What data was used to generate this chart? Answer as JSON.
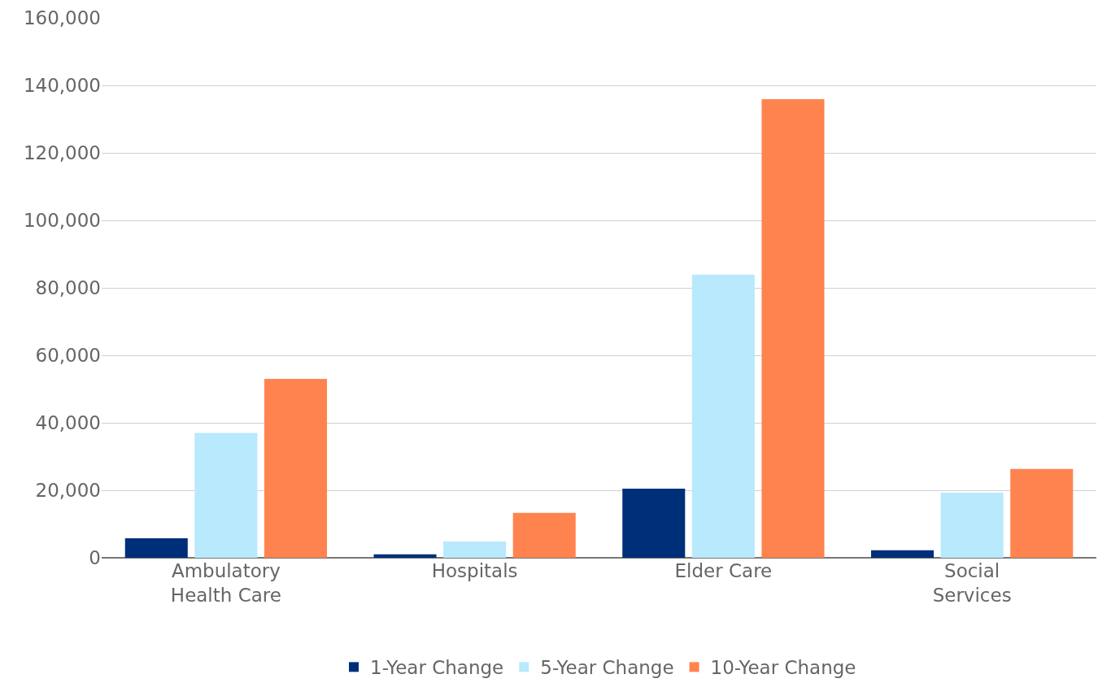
{
  "chart_data": {
    "type": "bar",
    "categories": [
      "Ambulatory\nHealth Care",
      "Hospitals",
      "Elder Care",
      "Social\nServices"
    ],
    "series": [
      {
        "name": "1-Year Change",
        "color": "#002f7a",
        "values": [
          5800,
          1000,
          20500,
          2200
        ]
      },
      {
        "name": "5-Year Change",
        "color": "#b8e9fd",
        "values": [
          37000,
          4800,
          83900,
          19300
        ]
      },
      {
        "name": "10-Year Change",
        "color": "#ff834e",
        "values": [
          53000,
          13300,
          135900,
          26300
        ]
      }
    ],
    "ylim": [
      0,
      160000
    ],
    "yticks": [
      {
        "value": 0,
        "label": "0"
      },
      {
        "value": 20000,
        "label": "20,000"
      },
      {
        "value": 40000,
        "label": "40,000"
      },
      {
        "value": 60000,
        "label": "60,000"
      },
      {
        "value": 80000,
        "label": "80,000"
      },
      {
        "value": 100000,
        "label": "100,000"
      },
      {
        "value": 120000,
        "label": "120,000"
      },
      {
        "value": 140000,
        "label": "140,000"
      },
      {
        "value": 160000,
        "label": "160,000"
      }
    ],
    "grid": "y",
    "legend": "bottom"
  }
}
